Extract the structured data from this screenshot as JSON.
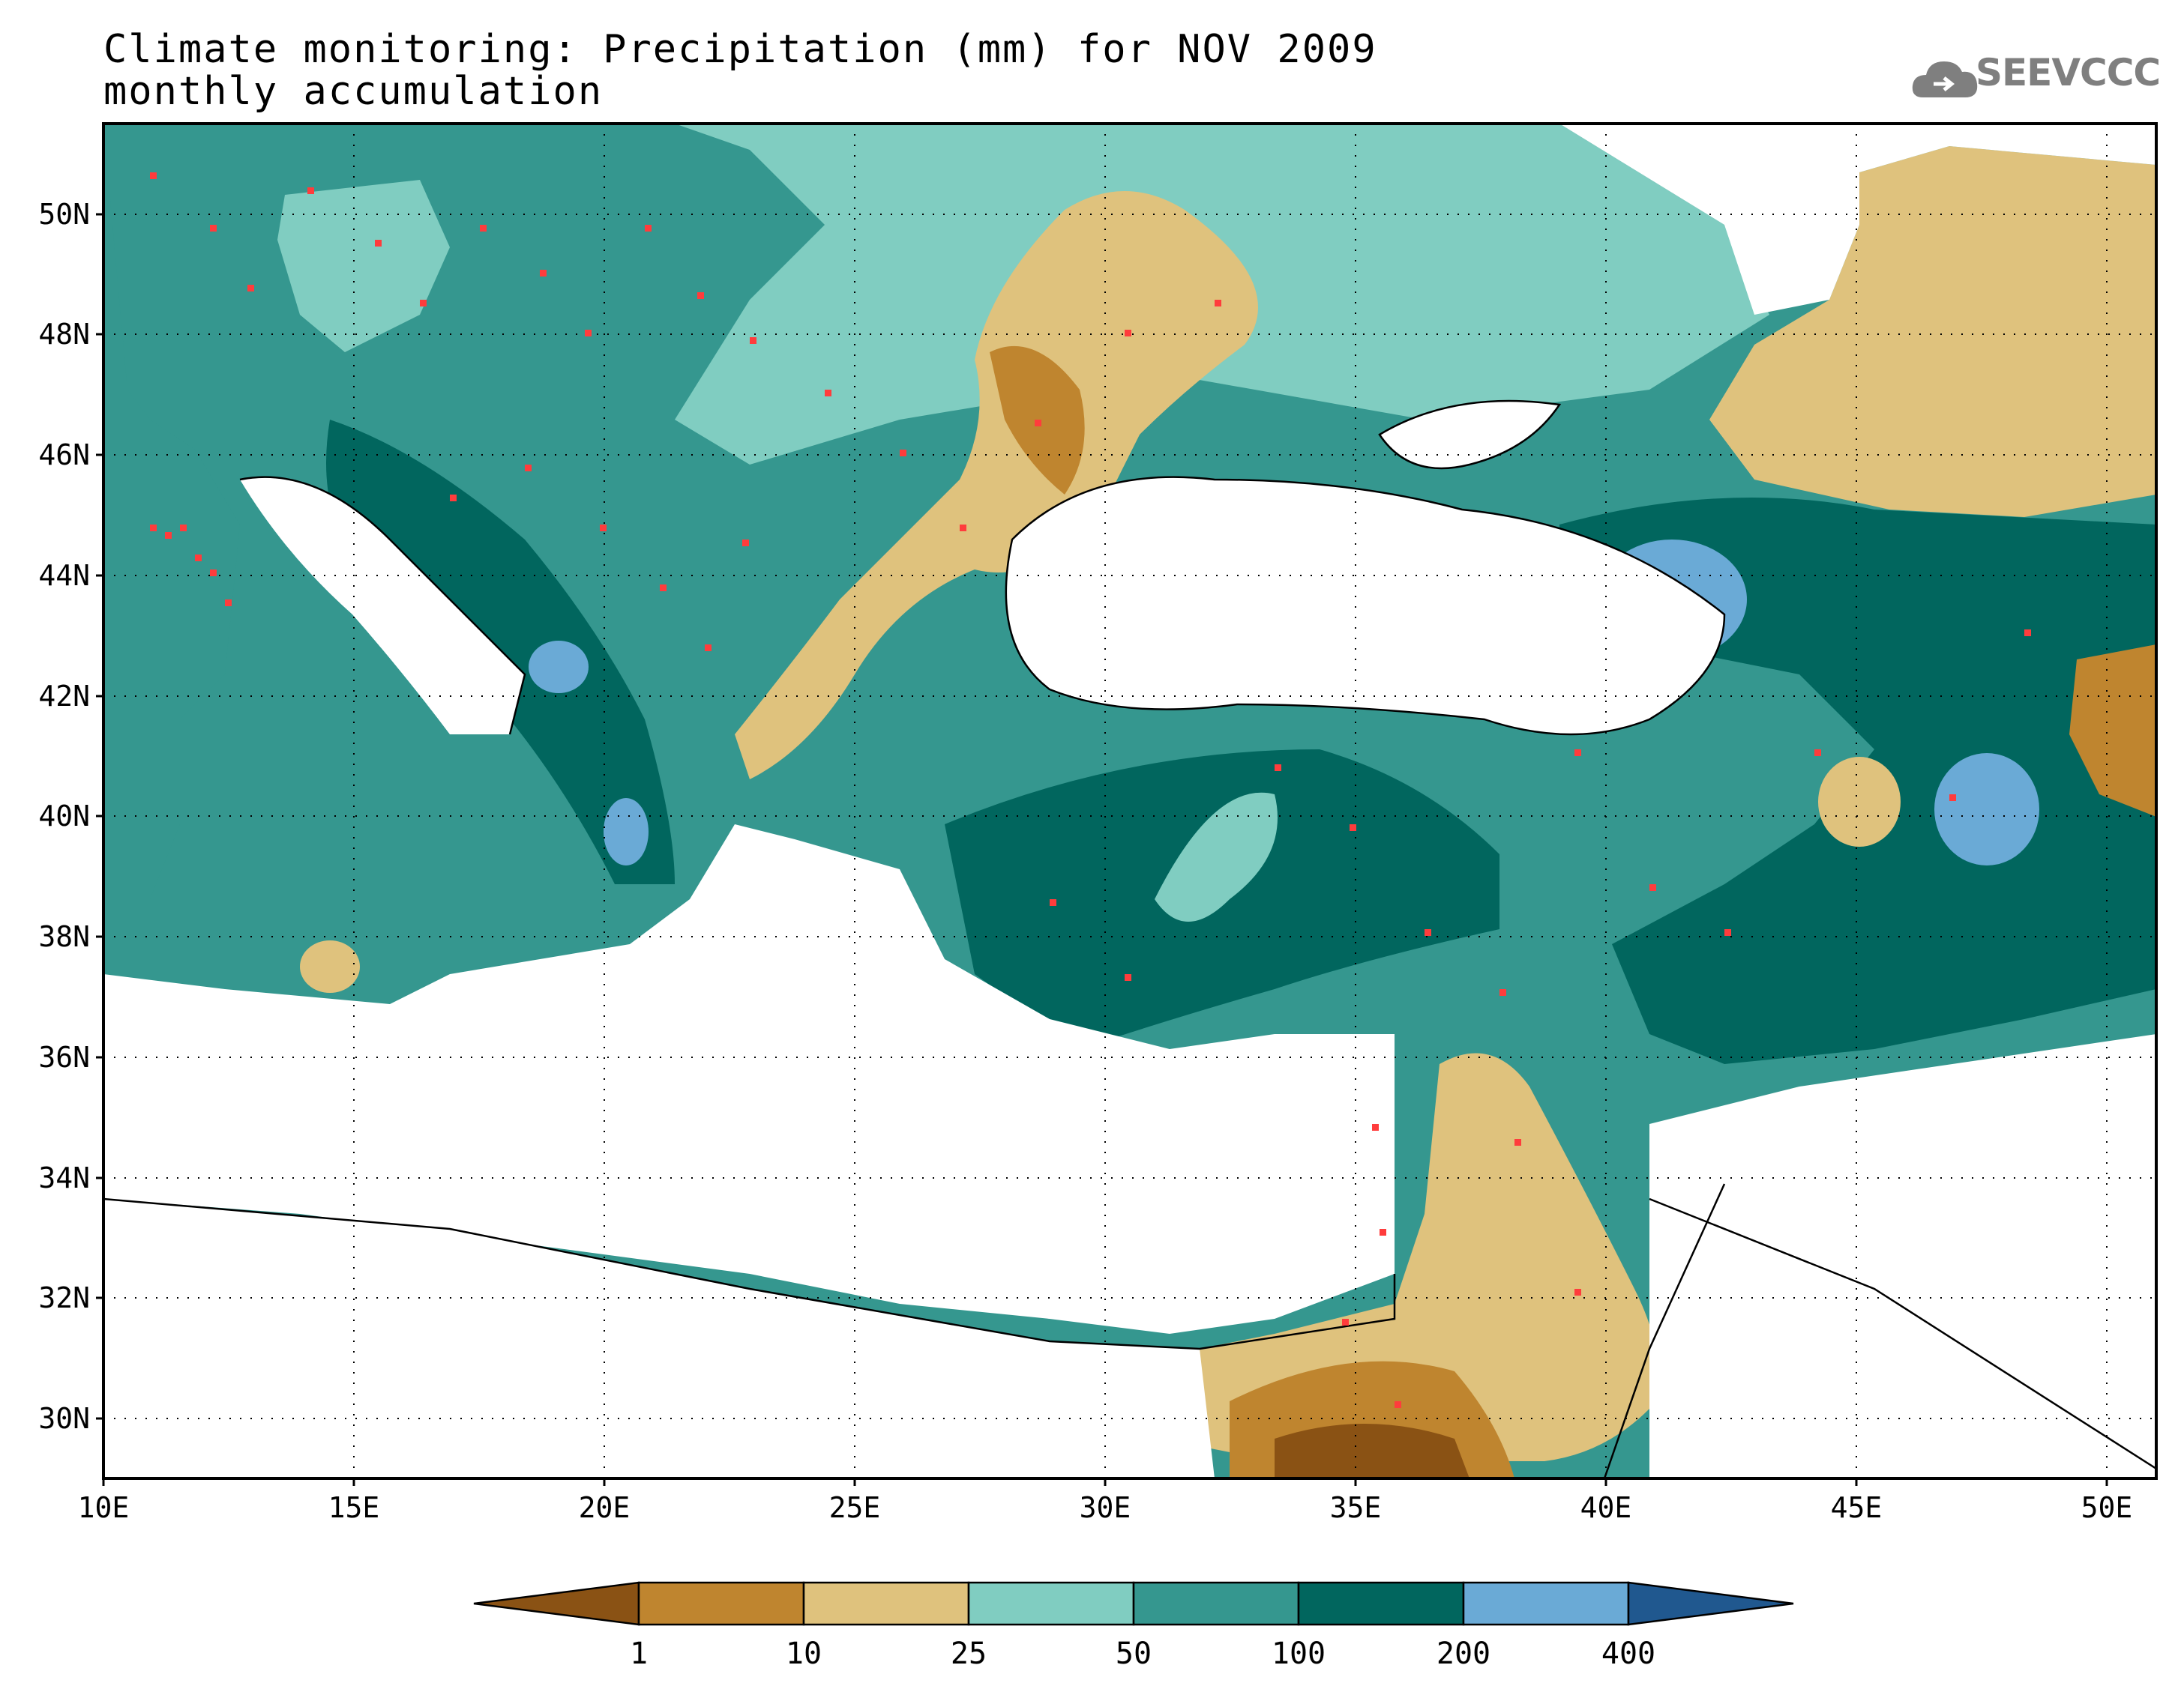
{
  "title": {
    "line1": "Climate monitoring: Precipitation (mm) for NOV 2009",
    "line2": "monthly accumulation"
  },
  "logo": {
    "text": "SEEVCCC",
    "icon": "cloud-icon",
    "color": "#7f7f7f"
  },
  "map": {
    "lon_range": [
      10,
      51
    ],
    "lat_range": [
      29,
      51.5
    ],
    "lon_ticks": [
      "10E",
      "15E",
      "20E",
      "25E",
      "30E",
      "35E",
      "40E",
      "45E",
      "50E"
    ],
    "lat_ticks": [
      "30N",
      "32N",
      "34N",
      "36N",
      "38N",
      "40N",
      "42N",
      "44N",
      "46N",
      "48N",
      "50N"
    ],
    "grid": "dotted",
    "station_marker_color": "#ff3c3c"
  },
  "colorbar": {
    "levels": [
      "1",
      "10",
      "25",
      "50",
      "100",
      "200",
      "400"
    ],
    "colors": [
      "#8a5214",
      "#bf852f",
      "#dfc27d",
      "#80cdc1",
      "#35978f",
      "#01665e",
      "#6aaad6",
      "#20588f"
    ],
    "extend": "both"
  }
}
